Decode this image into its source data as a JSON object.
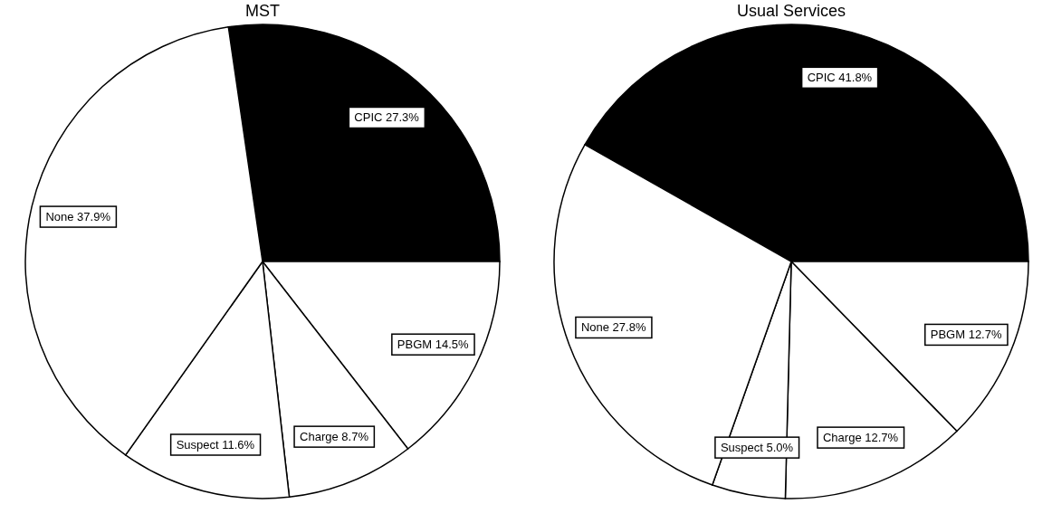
{
  "chart_data": [
    {
      "type": "pie",
      "title": "MST",
      "categories": [
        "CPIC",
        "PBGM",
        "Charge",
        "Suspect",
        "None"
      ],
      "values": [
        27.3,
        14.5,
        8.7,
        11.6,
        37.9
      ],
      "colors": [
        "#000000",
        "#ffffff",
        "#ffffff",
        "#ffffff",
        "#ffffff"
      ],
      "value_labels": [
        "27.3%",
        "14.5%",
        "8.7%",
        "11.6%",
        "37.9%"
      ]
    },
    {
      "type": "pie",
      "title": "Usual Services",
      "categories": [
        "CPIC",
        "PBGM",
        "Charge",
        "Suspect",
        "None"
      ],
      "values": [
        41.8,
        12.7,
        12.7,
        5.0,
        27.8
      ],
      "colors": [
        "#000000",
        "#ffffff",
        "#ffffff",
        "#ffffff",
        "#ffffff"
      ],
      "value_labels": [
        "41.8%",
        "12.7%",
        "12.7%",
        "5.0%",
        "27.8%"
      ]
    }
  ]
}
